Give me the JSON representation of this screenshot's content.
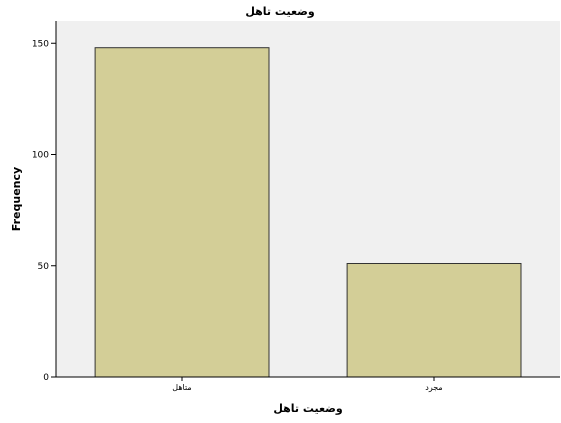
{
  "chart_data": {
    "type": "bar",
    "title": "وضعیت تاهل",
    "xlabel": "وضعیت تاهل",
    "ylabel": "Frequency",
    "categories": [
      "متاهل",
      "مجرد"
    ],
    "values": [
      148,
      51
    ],
    "ylim": [
      0,
      160
    ],
    "yticks": [
      "0",
      "50",
      "100",
      "150"
    ],
    "grid": false,
    "legend": "none"
  },
  "colors": {
    "plot_background": "#f0f0f0",
    "bar_fill": "#d3ce97",
    "bar_stroke": "#333333",
    "axis": "#000000"
  }
}
